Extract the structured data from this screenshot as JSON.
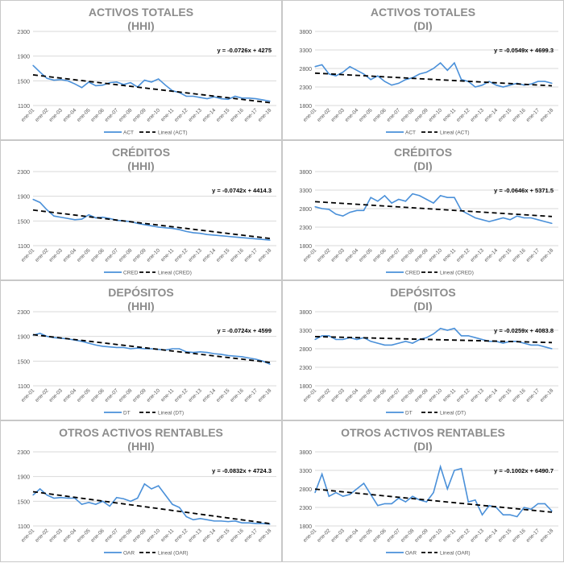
{
  "chart_data": [
    {
      "type": "line",
      "title": "ACTIVOS TOTALES",
      "subtitle": "(HHI)",
      "series_name": "ACT",
      "trend_name": "Lineal (ACT)",
      "equation": "y = -0.0726x + 4275",
      "slope": -0.0726,
      "intercept": 4275,
      "ylim": [
        1100,
        2300
      ],
      "yticks": [
        "1100",
        "1500",
        "1900",
        "2300"
      ],
      "values": [
        1750,
        1640,
        1540,
        1510,
        1520,
        1500,
        1450,
        1390,
        1480,
        1420,
        1430,
        1470,
        1480,
        1440,
        1470,
        1400,
        1510,
        1480,
        1530,
        1430,
        1340,
        1310,
        1250,
        1250,
        1230,
        1210,
        1240,
        1210,
        1200,
        1250,
        1220,
        1220,
        1210,
        1190,
        1170
      ]
    },
    {
      "type": "line",
      "title": "ACTIVOS TOTALES",
      "subtitle": "(DI)",
      "series_name": "ACT",
      "trend_name": "Lineal (ACT)",
      "equation": "y = -0.0549x + 4699.3",
      "slope": -0.0549,
      "intercept": 4699.3,
      "ylim": [
        1800,
        3800
      ],
      "yticks": [
        "1800",
        "2300",
        "2800",
        "3300",
        "3800"
      ],
      "values": [
        2850,
        2900,
        2650,
        2600,
        2700,
        2850,
        2750,
        2650,
        2500,
        2600,
        2450,
        2350,
        2400,
        2500,
        2550,
        2650,
        2700,
        2800,
        2950,
        2750,
        2950,
        2500,
        2450,
        2300,
        2350,
        2450,
        2350,
        2300,
        2350,
        2400,
        2350,
        2380,
        2450,
        2450,
        2400
      ]
    },
    {
      "type": "line",
      "title": "CRÉDITOS",
      "subtitle": "(HHI)",
      "series_name": "CRED",
      "trend_name": "Lineal (CRED)",
      "equation": "y = -0.0742x + 4414.3",
      "slope": -0.0742,
      "intercept": 4414.3,
      "ylim": [
        1100,
        2300
      ],
      "yticks": [
        "1100",
        "1500",
        "1900",
        "2300"
      ],
      "values": [
        1850,
        1800,
        1680,
        1580,
        1560,
        1540,
        1520,
        1530,
        1600,
        1550,
        1560,
        1540,
        1510,
        1500,
        1490,
        1460,
        1440,
        1420,
        1400,
        1390,
        1380,
        1360,
        1330,
        1310,
        1300,
        1280,
        1270,
        1260,
        1250,
        1240,
        1230,
        1220,
        1210,
        1200,
        1190
      ]
    },
    {
      "type": "line",
      "title": "CRÉDITOS",
      "subtitle": "(DI)",
      "series_name": "CRED",
      "trend_name": "Lineal (CRED)",
      "equation": "y = -0.0646x + 5371.5",
      "slope": -0.0646,
      "intercept": 5371.5,
      "ylim": [
        1800,
        3800
      ],
      "yticks": [
        "1800",
        "2300",
        "2800",
        "3300",
        "3800"
      ],
      "values": [
        2850,
        2800,
        2780,
        2650,
        2600,
        2700,
        2750,
        2750,
        3100,
        3000,
        3150,
        2950,
        3050,
        3000,
        3200,
        3150,
        3050,
        2950,
        3150,
        3100,
        3100,
        2750,
        2650,
        2550,
        2500,
        2450,
        2500,
        2550,
        2500,
        2600,
        2550,
        2550,
        2500,
        2450,
        2400
      ]
    },
    {
      "type": "line",
      "title": "DEPÓSITOS",
      "subtitle": "(HHI)",
      "series_name": "DT",
      "trend_name": "Lineal (DT)",
      "equation": "y = -0.0724x + 4599",
      "slope": -0.0724,
      "intercept": 4599,
      "ylim": [
        1100,
        2300
      ],
      "yticks": [
        "1100",
        "1500",
        "1900",
        "2300"
      ],
      "values": [
        1920,
        1950,
        1900,
        1880,
        1870,
        1860,
        1840,
        1820,
        1790,
        1760,
        1740,
        1730,
        1720,
        1720,
        1700,
        1710,
        1700,
        1700,
        1690,
        1680,
        1700,
        1700,
        1650,
        1640,
        1650,
        1640,
        1620,
        1610,
        1590,
        1580,
        1570,
        1550,
        1530,
        1500,
        1450
      ]
    },
    {
      "type": "line",
      "title": "DEPÓSITOS",
      "subtitle": "(DI)",
      "series_name": "DT",
      "trend_name": "Lineal (DT)",
      "equation": "y = -0.0259x + 4083.8",
      "slope": -0.0259,
      "intercept": 4083.8,
      "ylim": [
        1800,
        3800
      ],
      "yticks": [
        "1800",
        "2300",
        "2800",
        "3300",
        "3800"
      ],
      "values": [
        3050,
        3150,
        3150,
        3050,
        3050,
        3100,
        3050,
        3100,
        3000,
        2950,
        2900,
        2900,
        2950,
        3000,
        2950,
        3050,
        3100,
        3200,
        3350,
        3300,
        3350,
        3150,
        3150,
        3100,
        3050,
        3000,
        3000,
        2950,
        3000,
        3000,
        2950,
        2900,
        2900,
        2850,
        2800
      ]
    },
    {
      "type": "line",
      "title": "OTROS ACTIVOS RENTABLES",
      "subtitle": "(HHI)",
      "series_name": "OAR",
      "trend_name": "Lineal (OAR)",
      "equation": "y = -0.0832x + 4724.3",
      "slope": -0.0832,
      "intercept": 4724.3,
      "ylim": [
        1100,
        2300
      ],
      "yticks": [
        "1100",
        "1500",
        "1900",
        "2300"
      ],
      "values": [
        1600,
        1700,
        1600,
        1550,
        1560,
        1550,
        1550,
        1450,
        1480,
        1450,
        1500,
        1420,
        1560,
        1540,
        1500,
        1550,
        1780,
        1700,
        1750,
        1600,
        1450,
        1400,
        1250,
        1200,
        1220,
        1200,
        1180,
        1180,
        1170,
        1180,
        1150,
        1150,
        1140,
        1140,
        1130
      ]
    },
    {
      "type": "line",
      "title": "OTROS ACTIVOS RENTABLES",
      "subtitle": "(DI)",
      "series_name": "OAR",
      "trend_name": "Lineal (OAR)",
      "equation": "y = -0.1002x + 6490.7",
      "slope": -0.1002,
      "intercept": 6490.7,
      "ylim": [
        1800,
        3800
      ],
      "yticks": [
        "1800",
        "2300",
        "2800",
        "3300",
        "3800"
      ],
      "values": [
        2700,
        3200,
        2600,
        2700,
        2600,
        2650,
        2800,
        2950,
        2650,
        2350,
        2400,
        2400,
        2550,
        2450,
        2600,
        2500,
        2450,
        2700,
        3400,
        2800,
        3300,
        3350,
        2450,
        2500,
        2100,
        2350,
        2300,
        2100,
        2100,
        2050,
        2300,
        2250,
        2400,
        2400,
        2200
      ]
    }
  ],
  "x_step_months": 6,
  "xticks": [
    "ene-01",
    "ene-02",
    "ene-03",
    "ene-04",
    "ene-05",
    "ene-06",
    "ene-07",
    "ene-08",
    "ene-09",
    "ene-10",
    "ene-11",
    "ene-12",
    "ene-13",
    "ene-14",
    "ene-15",
    "ene-16",
    "ene-17",
    "ene-18"
  ],
  "colors": {
    "series": "#4a90d9",
    "trend": "#000000",
    "grid": "#d9d9d9",
    "text": "#595959"
  }
}
